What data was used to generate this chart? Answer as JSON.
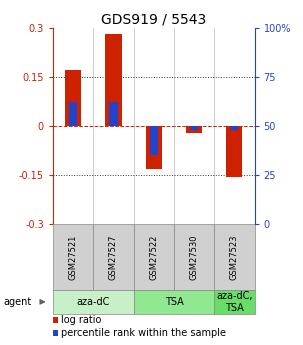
{
  "title": "GDS919 / 5543",
  "samples": [
    "GSM27521",
    "GSM27527",
    "GSM27522",
    "GSM27530",
    "GSM27523"
  ],
  "log_ratios": [
    0.17,
    0.28,
    -0.13,
    -0.022,
    -0.155
  ],
  "percentile_values": [
    62,
    62,
    35,
    48,
    48
  ],
  "ylim": [
    -0.3,
    0.3
  ],
  "yticks_left": [
    -0.3,
    -0.15,
    0,
    0.15,
    0.3
  ],
  "yticks_right": [
    0,
    25,
    50,
    75,
    100
  ],
  "bar_color_red": "#cc2200",
  "bar_color_blue": "#2244cc",
  "hline_color_red": "#cc2200",
  "groups": [
    {
      "label": "aza-dC",
      "samples": [
        0,
        1
      ],
      "color": "#c8f0c8"
    },
    {
      "label": "TSA",
      "samples": [
        2,
        3
      ],
      "color": "#90e890"
    },
    {
      "label": "aza-dC,\nTSA",
      "samples": [
        4
      ],
      "color": "#68dd68"
    }
  ],
  "agent_label": "agent",
  "legend_red_label": "log ratio",
  "legend_blue_label": "percentile rank within the sample",
  "background_color": "#ffffff",
  "bar_width": 0.4,
  "blue_bar_width": 0.2,
  "title_fontsize": 10,
  "tick_fontsize": 7,
  "sample_fontsize": 6,
  "agent_fontsize": 7,
  "legend_fontsize": 7
}
